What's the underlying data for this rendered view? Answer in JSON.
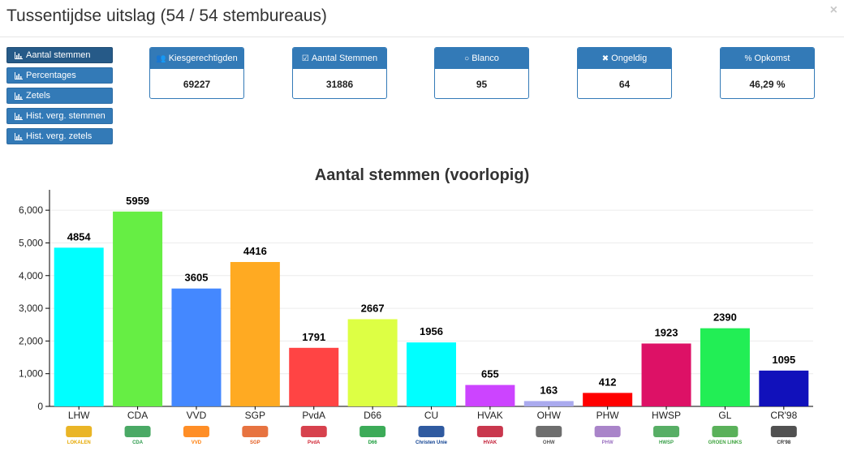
{
  "header": {
    "title": "Tussentijdse uitslag (54 / 54 stembureaus)",
    "close": "×"
  },
  "nav": [
    {
      "label": "Aantal stemmen",
      "active": true
    },
    {
      "label": "Percentages",
      "active": false
    },
    {
      "label": "Zetels",
      "active": false
    },
    {
      "label": "Hist. verg. stemmen",
      "active": false
    },
    {
      "label": "Hist. verg. zetels",
      "active": false
    }
  ],
  "stats": [
    {
      "icon": "users-icon",
      "glyph": "👥",
      "label": "Kiesgerechtigden",
      "value": "69227"
    },
    {
      "icon": "check-square-icon",
      "glyph": "☑",
      "label": "Aantal Stemmen",
      "value": "31886"
    },
    {
      "icon": "circle-icon",
      "glyph": "○",
      "label": "Blanco",
      "value": "95"
    },
    {
      "icon": "times-icon",
      "glyph": "✖",
      "label": "Ongeldig",
      "value": "64"
    },
    {
      "icon": "percent-icon",
      "glyph": "%",
      "label": "Opkomst",
      "value": "46,29 %"
    }
  ],
  "chart_data": {
    "type": "bar",
    "title": "Aantal stemmen (voorlopig)",
    "categories": [
      "LHW",
      "CDA",
      "VVD",
      "SGP",
      "PvdA",
      "D66",
      "CU",
      "HVAK",
      "OHW",
      "PHW",
      "HWSP",
      "GL",
      "CR'98"
    ],
    "values": [
      4854,
      5959,
      3605,
      4416,
      1791,
      2667,
      1956,
      655,
      163,
      412,
      1923,
      2390,
      1095
    ],
    "colors": [
      "#00ffff",
      "#66ee44",
      "#4488ff",
      "#ffaa22",
      "#ff4444",
      "#ddff44",
      "#00ffff",
      "#cc44ff",
      "#aaaaee",
      "#ff0000",
      "#dd1166",
      "#22ee55",
      "#1111bb"
    ],
    "yticks": [
      "0",
      "1,000",
      "2,000",
      "3,000",
      "4,000",
      "5,000",
      "6,000"
    ],
    "ylim": [
      0,
      6500
    ],
    "grid": true,
    "logos": [
      {
        "text": "LOKALEN",
        "color": "#e6a800",
        "icon": "lhw-logo-icon"
      },
      {
        "text": "CDA",
        "color": "#2a9a4a",
        "icon": "cda-logo-icon"
      },
      {
        "text": "VVD",
        "color": "#ff7a00",
        "icon": "vvd-logo-icon"
      },
      {
        "text": "SGP",
        "color": "#e35b1e",
        "icon": "sgp-logo-icon"
      },
      {
        "text": "PvdA",
        "color": "#d0202e",
        "icon": "pvda-logo-icon"
      },
      {
        "text": "D66",
        "color": "#1a9c3b",
        "icon": "d66-logo-icon"
      },
      {
        "text": "Christen Unie",
        "color": "#0a3d8f",
        "icon": "cu-logo-icon"
      },
      {
        "text": "HVAK",
        "color": "#c0142e",
        "icon": "hvak-logo-icon"
      },
      {
        "text": "OHW",
        "color": "#555555",
        "icon": "ohw-logo-icon"
      },
      {
        "text": "PHW",
        "color": "#9a6fc0",
        "icon": "phw-logo-icon"
      },
      {
        "text": "HWSP",
        "color": "#3aa04a",
        "icon": "hwsp-logo-icon"
      },
      {
        "text": "GROEN LINKS",
        "color": "#3da33d",
        "icon": "gl-logo-icon"
      },
      {
        "text": "CR'98",
        "color": "#333333",
        "icon": "cr98-logo-icon"
      }
    ]
  }
}
